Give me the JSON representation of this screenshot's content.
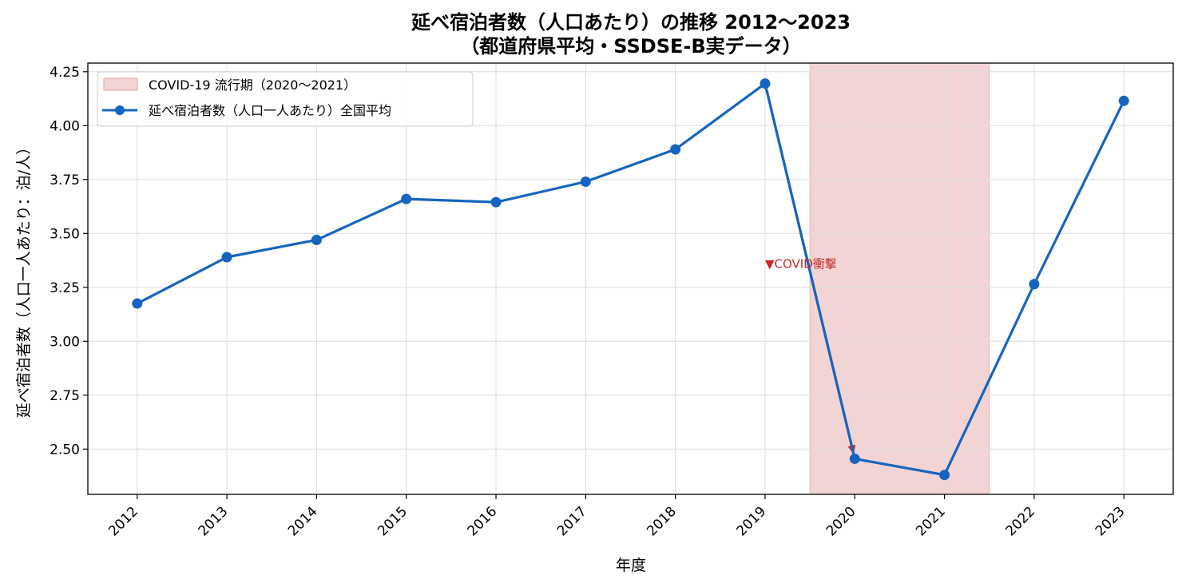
{
  "chart_data": {
    "type": "line",
    "title": "延べ宿泊者数（人口あたり）の推移 2012〜2023",
    "subtitle": "（都道府県平均・SSDSE-B実データ）",
    "xlabel": "年度",
    "ylabel": "延べ宿泊者数（人口一人あたり：泊/人）",
    "categories": [
      "2012",
      "2013",
      "2014",
      "2015",
      "2016",
      "2017",
      "2018",
      "2019",
      "2020",
      "2021",
      "2022",
      "2023"
    ],
    "series": [
      {
        "name": "延べ宿泊者数（人口一人あたり）全国平均",
        "color": "#1565c0",
        "values": [
          3.175,
          3.39,
          3.47,
          3.66,
          3.645,
          3.74,
          3.89,
          4.195,
          2.455,
          2.38,
          3.265,
          4.115
        ]
      }
    ],
    "ylim": [
      2.29,
      4.29
    ],
    "yticks": [
      "2.50",
      "2.75",
      "3.00",
      "3.25",
      "3.50",
      "3.75",
      "4.00",
      "4.25"
    ],
    "ytick_values": [
      2.5,
      2.75,
      3.0,
      3.25,
      3.5,
      3.75,
      4.0,
      4.25
    ],
    "grid": true,
    "legend_position": "top-left",
    "shaded_region": {
      "label": "COVID-19 流行期（2020〜2021）",
      "x_start": 2019.5,
      "x_end": 2021.5,
      "color": "#f3d4d4"
    },
    "annotation": {
      "text": "▼COVID衝撃",
      "from_year": 2019,
      "to_year": 2020,
      "color": "#c62828"
    }
  }
}
